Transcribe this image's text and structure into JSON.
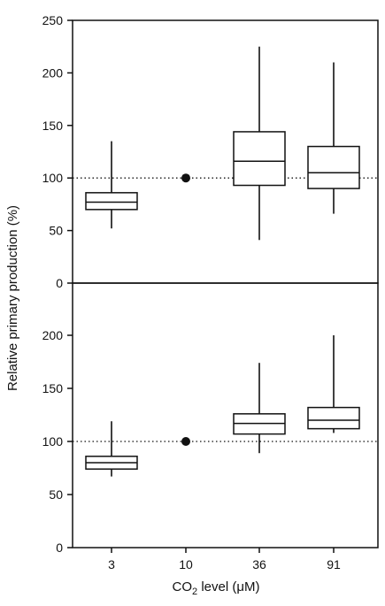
{
  "chart_data": {
    "type": "boxplot",
    "xlabel": {
      "main": "CO",
      "sub": "2",
      "rest": " level (μM)"
    },
    "ylabel": "Relative primary production (%)",
    "categories": [
      "3",
      "10",
      "36",
      "91"
    ],
    "reference_value": 100,
    "panels": [
      {
        "name": "top",
        "ylim": [
          0,
          250
        ],
        "yticks": [
          0,
          50,
          100,
          150,
          200,
          250
        ],
        "boxes": [
          {
            "category": "3",
            "min": 52,
            "q1": 70,
            "median": 77,
            "q3": 86,
            "max": 135
          },
          {
            "category": "10",
            "point": 100
          },
          {
            "category": "36",
            "min": 41,
            "q1": 93,
            "median": 116,
            "q3": 144,
            "max": 225
          },
          {
            "category": "91",
            "min": 66,
            "q1": 90,
            "median": 105,
            "q3": 130,
            "max": 210
          }
        ]
      },
      {
        "name": "bottom",
        "ylim": [
          0,
          225
        ],
        "yticks": [
          0,
          50,
          100,
          150,
          200
        ],
        "boxes": [
          {
            "category": "3",
            "min": 67,
            "q1": 74,
            "median": 80,
            "q3": 86,
            "max": 119
          },
          {
            "category": "10",
            "point": 100
          },
          {
            "category": "36",
            "min": 89,
            "q1": 107,
            "median": 117,
            "q3": 126,
            "max": 174
          },
          {
            "category": "91",
            "min": 108,
            "q1": 112,
            "median": 120,
            "q3": 132,
            "max": 200
          }
        ]
      }
    ]
  }
}
